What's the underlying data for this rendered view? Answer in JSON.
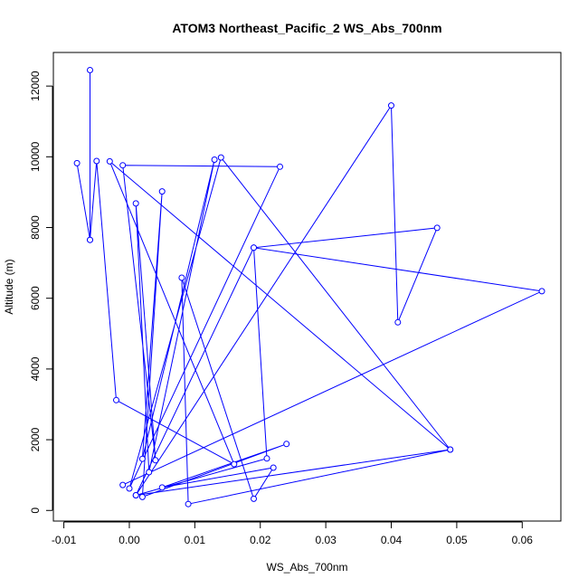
{
  "chart_data": {
    "type": "line",
    "title": "ATOM3 Northeast_Pacific_2 WS_Abs_700nm",
    "xlabel": "WS_Abs_700nm",
    "ylabel": "Altitude (m)",
    "xlim": [
      -0.0116,
      0.0659
    ],
    "ylim": [
      -300,
      12950
    ],
    "x_ticks": [
      -0.01,
      0.0,
      0.01,
      0.02,
      0.03,
      0.04,
      0.05,
      0.06
    ],
    "x_tick_labels": [
      "-0.01",
      "0.00",
      "0.01",
      "0.02",
      "0.03",
      "0.04",
      "0.05",
      "0.06"
    ],
    "y_ticks": [
      0,
      2000,
      4000,
      6000,
      8000,
      10000,
      12000
    ],
    "y_tick_labels": [
      "0",
      "2000",
      "4000",
      "6000",
      "8000",
      "10000",
      "12000"
    ],
    "grid": false,
    "legend": "none",
    "marker": "open-circle",
    "color": "#0000ff",
    "series": [
      {
        "x": [
          -0.006,
          -0.006,
          -0.008,
          -0.006,
          -0.005,
          -0.002,
          0.016,
          -0.003,
          0.049,
          0.014,
          0.0,
          0.023,
          -0.001,
          0.004,
          0.001,
          0.003,
          0.013,
          0.002,
          0.005,
          0.002,
          0.024,
          0.005,
          0.022,
          0.019,
          0.008,
          0.009,
          0.049,
          0.001,
          0.021,
          0.019,
          0.047,
          0.041,
          0.04,
          0.001,
          0.019,
          0.063,
          -0.001
        ],
        "y": [
          12450,
          7650,
          9820,
          7650,
          9880,
          3120,
          1310,
          9870,
          1720,
          9980,
          620,
          9720,
          9760,
          1420,
          8680,
          1080,
          9920,
          1460,
          9020,
          380,
          1880,
          650,
          1210,
          330,
          6580,
          180,
          1720,
          430,
          1470,
          7430,
          7990,
          5320,
          11450,
          430,
          7430,
          6200,
          720
        ]
      }
    ]
  }
}
